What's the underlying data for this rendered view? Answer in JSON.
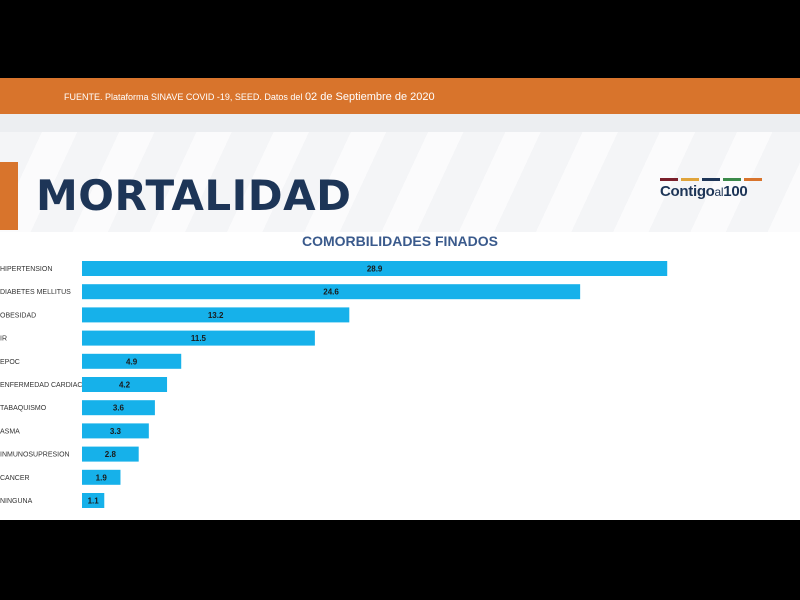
{
  "source": {
    "text": "FUENTE. Plataforma SINAVE COVID -19, SEED. Datos del",
    "date": "02 de Septiembre de 2020"
  },
  "page_title": "MORTALIDAD",
  "logo": {
    "brand": "Contigo",
    "brand_small": "al",
    "number": "100",
    "stripe_colors": [
      "#7a1f2b",
      "#e0a43a",
      "#1d3557",
      "#3b8a4a",
      "#d8742c"
    ]
  },
  "colors": {
    "bar": "#16b1ea",
    "accent": "#d8742c",
    "title": "#1d3557"
  },
  "chart_data": {
    "type": "bar",
    "orientation": "horizontal",
    "title": "COMORBILIDADES FINADOS",
    "xlabel": "",
    "ylabel": "",
    "xlim": [
      0,
      30
    ],
    "grid": false,
    "legend": "none",
    "categories": [
      "HIPERTENSION",
      "DIABETES MELLITUS",
      "OBESIDAD",
      "IR",
      "EPOC",
      "ENFERMEDAD CARDIACA",
      "TABAQUISMO",
      "ASMA",
      "INMUNOSUPRESION",
      "CANCER",
      "NINGUNA"
    ],
    "values": [
      28.9,
      24.6,
      13.2,
      11.5,
      4.9,
      4.2,
      3.6,
      3.3,
      2.8,
      1.9,
      1.1
    ],
    "value_labels": [
      "28.9",
      "24.6",
      "13.2",
      "11.5",
      "4.9",
      "4.2",
      "3.6",
      "3.3",
      "2.8",
      "1.9",
      "1.1"
    ]
  }
}
